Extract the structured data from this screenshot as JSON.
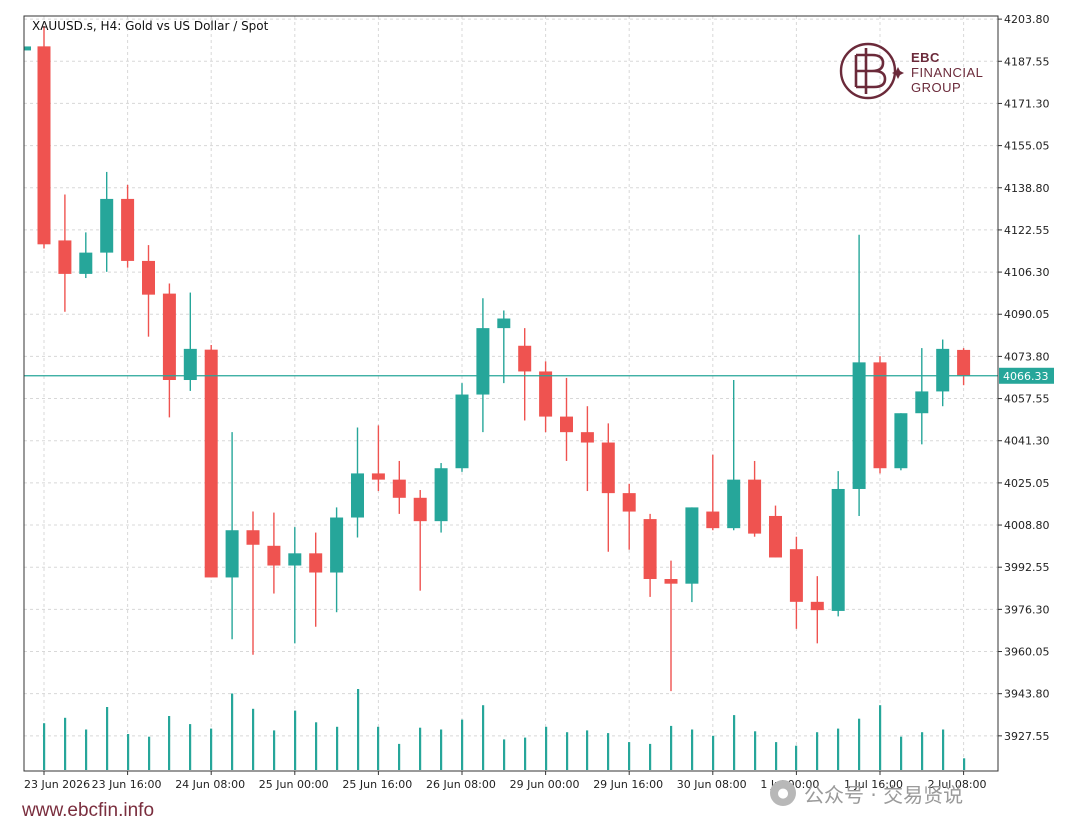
{
  "header": {
    "title": "XAUUSD.s, H4:  Gold vs US Dollar / Spot"
  },
  "brand": {
    "name_line1": "EBC",
    "name_line2": "FINANCIAL",
    "name_line3": "GROUP",
    "color": "#6b2a3a"
  },
  "footer": {
    "website": "www.ebcfin.info",
    "watermark": "公众号 · 交易贤说"
  },
  "colors": {
    "bull": "#26a69a",
    "bear": "#ef5350",
    "price_line": "#26a69a",
    "grid": "#d8d8d8"
  },
  "chart_data": {
    "type": "candlestick",
    "title": "XAUUSD.s, H4:  Gold vs US Dollar / Spot",
    "ylim": [
      3914.0,
      4205.0
    ],
    "grid": true,
    "current_price": 4066.33,
    "current_price_label": "4066.33",
    "y_ticks": [
      "4203.80",
      "4187.55",
      "4171.30",
      "4155.05",
      "4138.80",
      "4122.55",
      "4106.30",
      "4090.05",
      "4073.80",
      "4057.55",
      "4041.30",
      "4025.05",
      "4008.80",
      "3992.55",
      "3976.30",
      "3960.05",
      "3943.80",
      "3927.55"
    ],
    "x_labels": [
      {
        "index": 0,
        "label": "23 Jun 2026"
      },
      {
        "index": 4,
        "label": "23 Jun 16:00"
      },
      {
        "index": 8,
        "label": "24 Jun 08:00"
      },
      {
        "index": 12,
        "label": "25 Jun 00:00"
      },
      {
        "index": 16,
        "label": "25 Jun 16:00"
      },
      {
        "index": 20,
        "label": "26 Jun 08:00"
      },
      {
        "index": 24,
        "label": "29 Jun 00:00"
      },
      {
        "index": 28,
        "label": "29 Jun 16:00"
      },
      {
        "index": 32,
        "label": "30 Jun 08:00"
      },
      {
        "index": 36,
        "label": "1 Jul 00:00"
      },
      {
        "index": 40,
        "label": "1 Jul 16:00"
      },
      {
        "index": 44,
        "label": "2 Jul 08:00"
      }
    ],
    "candles": [
      {
        "o": 4193.3,
        "h": 4201.1,
        "l": 4115.4,
        "c": 4117.0
      },
      {
        "o": 4118.5,
        "h": 4136.2,
        "l": 4091.0,
        "c": 4105.6
      },
      {
        "o": 4105.6,
        "h": 4121.6,
        "l": 4104.0,
        "c": 4113.8
      },
      {
        "o": 4113.8,
        "h": 4144.9,
        "l": 4106.4,
        "c": 4134.5
      },
      {
        "o": 4134.5,
        "h": 4139.9,
        "l": 4108.0,
        "c": 4110.6
      },
      {
        "o": 4110.6,
        "h": 4116.7,
        "l": 4081.4,
        "c": 4097.6
      },
      {
        "o": 4098.0,
        "h": 4101.9,
        "l": 4050.3,
        "c": 4064.7
      },
      {
        "o": 4064.7,
        "h": 4098.4,
        "l": 4060.5,
        "c": 4076.7
      },
      {
        "o": 4076.4,
        "h": 4078.2,
        "l": 3988.6,
        "c": 3988.6
      },
      {
        "o": 3988.6,
        "h": 4044.6,
        "l": 3964.8,
        "c": 4006.8
      },
      {
        "o": 4006.8,
        "h": 4014.0,
        "l": 3958.8,
        "c": 4001.2
      },
      {
        "o": 4000.8,
        "h": 4013.6,
        "l": 3982.4,
        "c": 3993.2
      },
      {
        "o": 3993.2,
        "h": 4008.0,
        "l": 3963.2,
        "c": 3997.9
      },
      {
        "o": 3997.9,
        "h": 4005.9,
        "l": 3969.6,
        "c": 3990.5
      },
      {
        "o": 3990.5,
        "h": 4015.6,
        "l": 3975.2,
        "c": 4011.7
      },
      {
        "o": 4011.7,
        "h": 4046.4,
        "l": 4004.0,
        "c": 4028.7
      },
      {
        "o": 4028.7,
        "h": 4047.2,
        "l": 4021.9,
        "c": 4026.3
      },
      {
        "o": 4026.3,
        "h": 4033.5,
        "l": 4013.1,
        "c": 4019.3
      },
      {
        "o": 4019.3,
        "h": 4022.3,
        "l": 3983.5,
        "c": 4010.3
      },
      {
        "o": 4010.3,
        "h": 4032.7,
        "l": 4005.9,
        "c": 4030.7
      },
      {
        "o": 4030.7,
        "h": 4063.5,
        "l": 4029.3,
        "c": 4059.1
      },
      {
        "o": 4059.1,
        "h": 4096.2,
        "l": 4044.6,
        "c": 4084.7
      },
      {
        "o": 4084.7,
        "h": 4091.5,
        "l": 4063.5,
        "c": 4088.4
      },
      {
        "o": 4077.9,
        "h": 4084.7,
        "l": 4049.1,
        "c": 4068.0
      },
      {
        "o": 4068.0,
        "h": 4071.9,
        "l": 4044.6,
        "c": 4050.6
      },
      {
        "o": 4050.6,
        "h": 4065.5,
        "l": 4033.5,
        "c": 4044.6
      },
      {
        "o": 4044.6,
        "h": 4054.6,
        "l": 4021.9,
        "c": 4040.6
      },
      {
        "o": 4040.6,
        "h": 4048.0,
        "l": 3998.5,
        "c": 4021.1
      },
      {
        "o": 4021.1,
        "h": 4024.7,
        "l": 3999.3,
        "c": 4014.0
      },
      {
        "o": 4011.1,
        "h": 4013.1,
        "l": 3981.1,
        "c": 3988.0
      },
      {
        "o": 3988.0,
        "h": 3995.1,
        "l": 3944.8,
        "c": 3986.2
      },
      {
        "o": 3986.2,
        "h": 4015.6,
        "l": 3979.1,
        "c": 4015.6
      },
      {
        "o": 4014.0,
        "h": 4035.9,
        "l": 4006.8,
        "c": 4007.6
      },
      {
        "o": 4007.6,
        "h": 4064.7,
        "l": 4006.8,
        "c": 4026.3
      },
      {
        "o": 4026.3,
        "h": 4033.5,
        "l": 4004.3,
        "c": 4005.5
      },
      {
        "o": 4012.3,
        "h": 4016.3,
        "l": 3996.3,
        "c": 3996.3
      },
      {
        "o": 3999.5,
        "h": 4004.3,
        "l": 3968.8,
        "c": 3979.2
      },
      {
        "o": 3979.2,
        "h": 3989.1,
        "l": 3963.2,
        "c": 3976.0
      },
      {
        "o": 3975.7,
        "h": 4029.6,
        "l": 3973.6,
        "c": 4022.7
      },
      {
        "o": 4022.7,
        "h": 4120.7,
        "l": 4012.3,
        "c": 4071.5
      },
      {
        "o": 4071.5,
        "h": 4073.9,
        "l": 4028.7,
        "c": 4030.7
      },
      {
        "o": 4030.7,
        "h": 4051.9,
        "l": 4029.9,
        "c": 4051.9
      },
      {
        "o": 4051.9,
        "h": 4077.0,
        "l": 4039.9,
        "c": 4060.3
      },
      {
        "o": 4060.3,
        "h": 4080.3,
        "l": 4054.6,
        "c": 4076.7
      },
      {
        "o": 4076.3,
        "h": 4077.0,
        "l": 4062.7,
        "c": 4066.3
      }
    ],
    "volumes": [
      52,
      58,
      45,
      70,
      40,
      37,
      60,
      51,
      46,
      85,
      68,
      44,
      66,
      53,
      48,
      90,
      48,
      29,
      47,
      45,
      56,
      72,
      34,
      36,
      48,
      42,
      44,
      41,
      31,
      29,
      49,
      45,
      38,
      61,
      43,
      31,
      27,
      42,
      46,
      57,
      72,
      37,
      42,
      45,
      13
    ]
  }
}
